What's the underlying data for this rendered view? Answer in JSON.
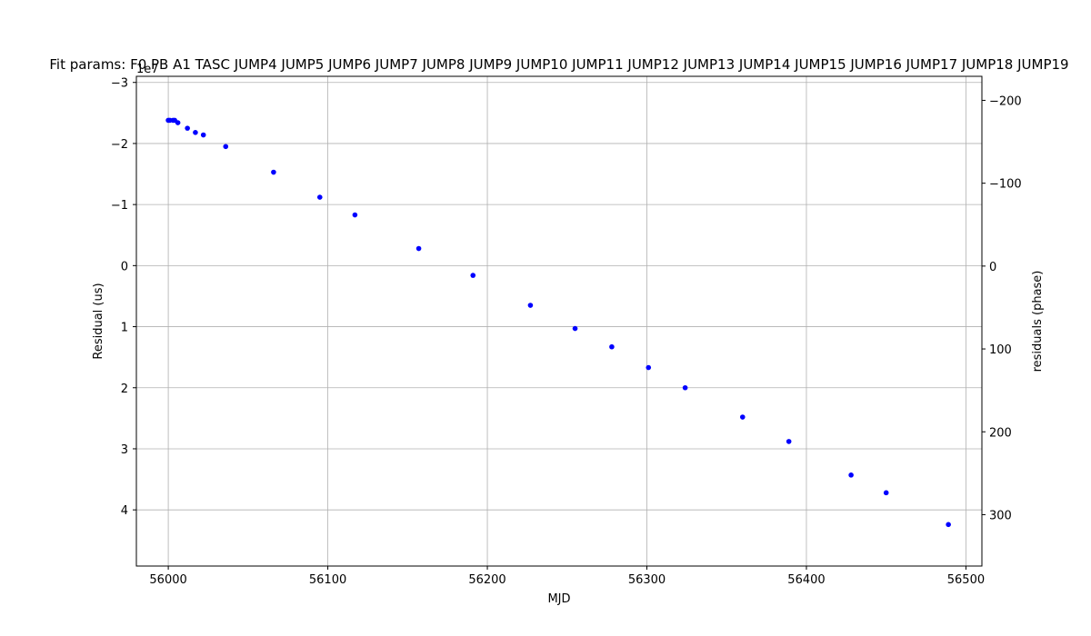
{
  "chart_data": {
    "type": "scatter",
    "title": "Fit params: F0 PB A1 TASC JUMP4 JUMP5 JUMP6 JUMP7 JUMP8 JUMP9 JUMP10 JUMP11 JUMP12 JUMP13 JUMP14 JUMP15 JUMP16 JUMP17 JUMP18 JUMP19",
    "xlabel": "MJD",
    "ylabel": "Residual (us)",
    "y2label": "residuals (phase)",
    "offset_text": "1e7",
    "xlim": [
      55980,
      56510
    ],
    "ylim": [
      4.92,
      -3.1
    ],
    "y2lim": [
      362,
      -229
    ],
    "grid": true,
    "marker_color": "#0000ff",
    "x_ticks": [
      56000,
      56100,
      56200,
      56300,
      56400,
      56500
    ],
    "x_tick_labels": [
      "56000",
      "56100",
      "56200",
      "56300",
      "56400",
      "56500"
    ],
    "y_ticks": [
      -3,
      -2,
      -1,
      0,
      1,
      2,
      3,
      4
    ],
    "y_tick_labels": [
      "−3",
      "−2",
      "−1",
      "0",
      "1",
      "2",
      "3",
      "4"
    ],
    "y2_ticks": [
      -200,
      -100,
      0,
      100,
      200,
      300
    ],
    "y2_tick_labels": [
      "−200",
      "−100",
      "0",
      "100",
      "200",
      "300"
    ],
    "x": [
      56000,
      56001,
      56003,
      56004,
      56006,
      56012,
      56017,
      56022,
      56036,
      56066,
      56095,
      56117,
      56157,
      56191,
      56227,
      56255,
      56278,
      56301,
      56324,
      56360,
      56389,
      56428,
      56450,
      56489
    ],
    "y": [
      -2.38,
      -2.38,
      -2.38,
      -2.38,
      -2.34,
      -2.25,
      -2.18,
      -2.14,
      -1.95,
      -1.53,
      -1.12,
      -0.83,
      -0.28,
      0.16,
      0.65,
      1.03,
      1.33,
      1.67,
      2.0,
      2.48,
      2.88,
      3.43,
      3.72,
      4.24
    ]
  }
}
